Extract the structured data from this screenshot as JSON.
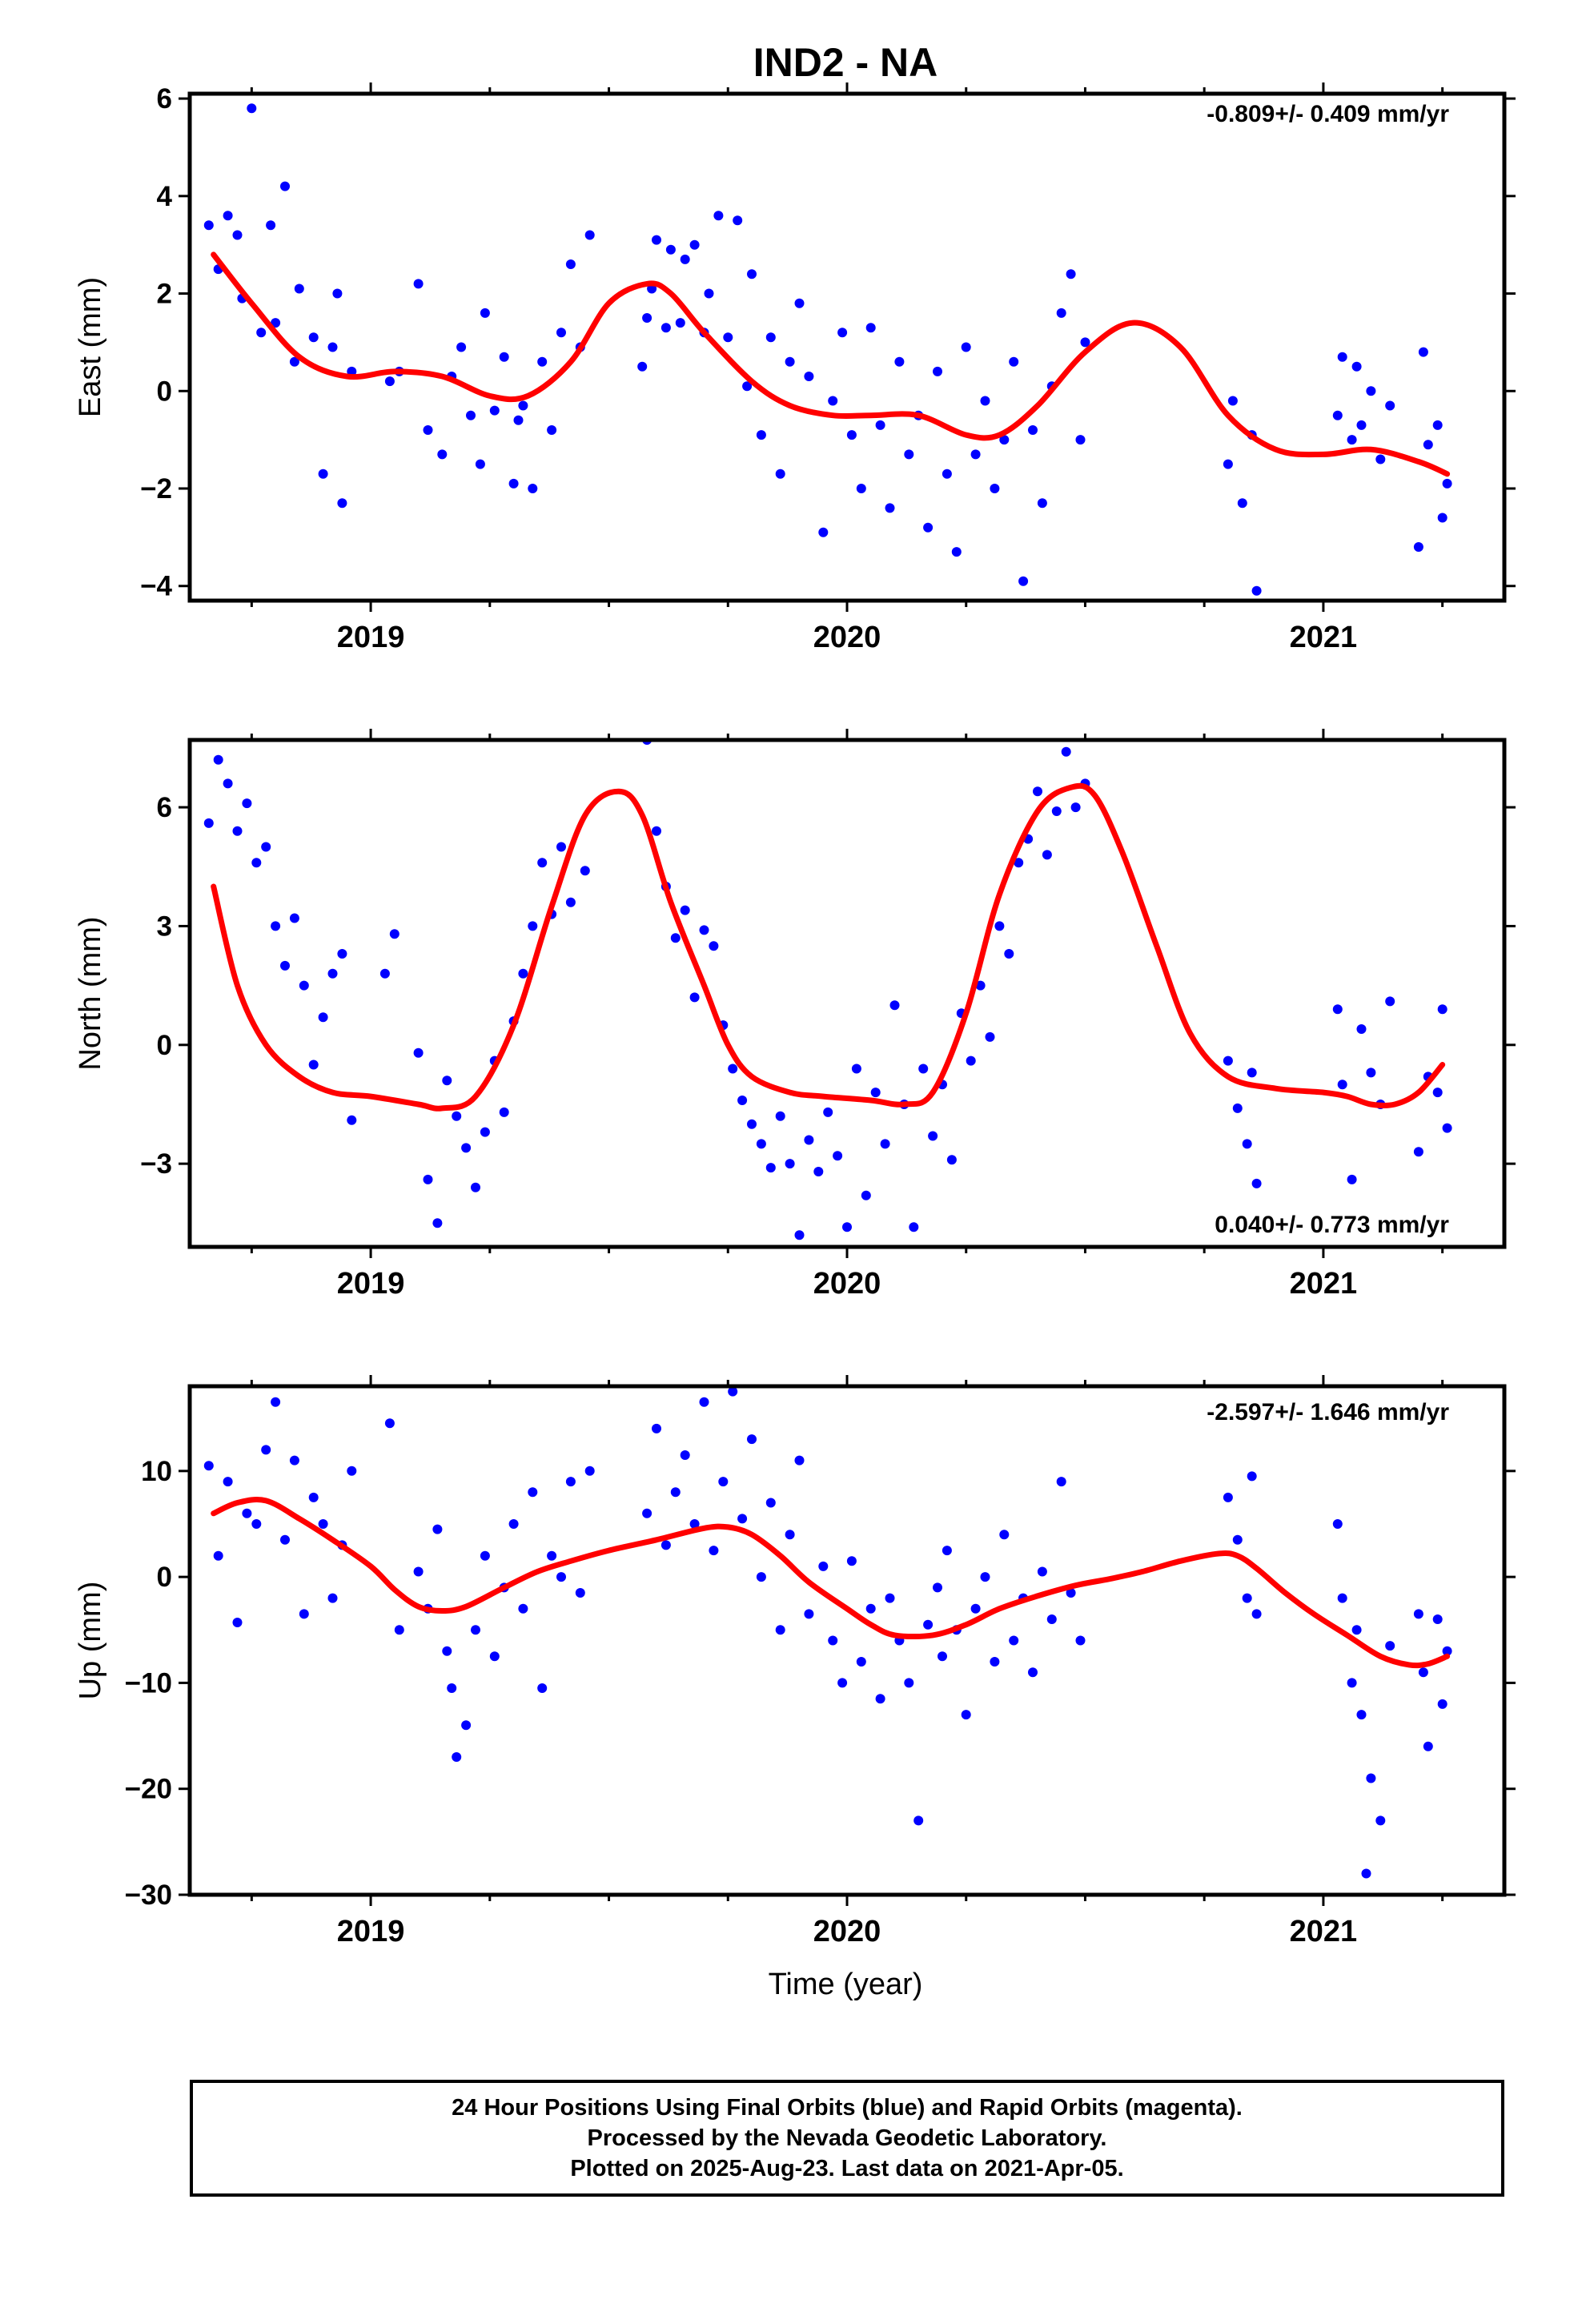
{
  "title": "IND2 - NA",
  "xlabel": "Time (year)",
  "colors": {
    "points": "#0000ff",
    "fit": "#ff0000",
    "axes": "#000000"
  },
  "chart_data": [
    {
      "type": "scatter",
      "name": "east",
      "ylabel": "East (mm)",
      "rate_text": "-0.809+/- 0.409 mm/yr",
      "xlim": [
        2018.62,
        2021.38
      ],
      "ylim": [
        -4.3,
        6.1
      ],
      "yticks": [
        -4,
        -2,
        0,
        2,
        4,
        6
      ],
      "yticklabels": [
        "−4",
        "−2",
        "0",
        "2",
        "4",
        "6"
      ],
      "xticks": [
        2019,
        2020,
        2021
      ],
      "xticklabels": [
        "2019",
        "2020",
        "2021"
      ],
      "fit": {
        "x": [
          2018.67,
          2018.75,
          2018.85,
          2018.95,
          2019.05,
          2019.15,
          2019.25,
          2019.33,
          2019.42,
          2019.5,
          2019.58,
          2019.63,
          2019.7,
          2019.8,
          2019.88,
          2019.97,
          2020.05,
          2020.15,
          2020.25,
          2020.32,
          2020.4,
          2020.5,
          2020.6,
          2020.7,
          2020.8,
          2020.9,
          2021.0,
          2021.1,
          2021.2,
          2021.26
        ],
        "y": [
          2.8,
          1.8,
          0.7,
          0.3,
          0.4,
          0.3,
          -0.1,
          -0.1,
          0.6,
          1.8,
          2.2,
          2.0,
          1.2,
          0.2,
          -0.3,
          -0.5,
          -0.5,
          -0.5,
          -0.9,
          -0.9,
          -0.3,
          0.8,
          1.4,
          0.9,
          -0.5,
          -1.2,
          -1.3,
          -1.2,
          -1.45,
          -1.7
        ]
      },
      "points": {
        "x": [
          2018.66,
          2018.68,
          2018.7,
          2018.72,
          2018.73,
          2018.75,
          2018.77,
          2018.79,
          2018.8,
          2018.82,
          2018.84,
          2018.85,
          2018.88,
          2018.9,
          2018.92,
          2018.93,
          2018.94,
          2018.96,
          2019.04,
          2019.06,
          2019.1,
          2019.12,
          2019.15,
          2019.17,
          2019.19,
          2019.21,
          2019.23,
          2019.24,
          2019.26,
          2019.28,
          2019.3,
          2019.31,
          2019.32,
          2019.34,
          2019.36,
          2019.38,
          2019.4,
          2019.42,
          2019.44,
          2019.46,
          2019.57,
          2019.58,
          2019.59,
          2019.6,
          2019.62,
          2019.63,
          2019.65,
          2019.66,
          2019.68,
          2019.7,
          2019.71,
          2019.73,
          2019.75,
          2019.77,
          2019.79,
          2019.8,
          2019.82,
          2019.84,
          2019.86,
          2019.88,
          2019.9,
          2019.92,
          2019.95,
          2019.97,
          2019.99,
          2020.01,
          2020.03,
          2020.05,
          2020.07,
          2020.09,
          2020.11,
          2020.13,
          2020.15,
          2020.17,
          2020.19,
          2020.21,
          2020.23,
          2020.25,
          2020.27,
          2020.29,
          2020.31,
          2020.33,
          2020.35,
          2020.37,
          2020.39,
          2020.41,
          2020.43,
          2020.45,
          2020.47,
          2020.49,
          2020.5,
          2020.8,
          2020.81,
          2020.83,
          2020.85,
          2020.86,
          2021.03,
          2021.04,
          2021.06,
          2021.07,
          2021.08,
          2021.1,
          2021.12,
          2021.14,
          2021.2,
          2021.21,
          2021.22,
          2021.24,
          2021.25,
          2021.26
        ],
        "y": [
          3.4,
          2.5,
          3.6,
          3.2,
          1.9,
          5.8,
          1.2,
          3.4,
          1.4,
          4.2,
          0.6,
          2.1,
          1.1,
          -1.7,
          0.9,
          2.0,
          -2.3,
          0.4,
          0.2,
          0.4,
          2.2,
          -0.8,
          -1.3,
          0.3,
          0.9,
          -0.5,
          -1.5,
          1.6,
          -0.4,
          0.7,
          -1.9,
          -0.6,
          -0.3,
          -2.0,
          0.6,
          -0.8,
          1.2,
          2.6,
          0.9,
          3.2,
          0.5,
          1.5,
          2.1,
          3.1,
          1.3,
          2.9,
          1.4,
          2.7,
          3.0,
          1.2,
          2.0,
          3.6,
          1.1,
          3.5,
          0.1,
          2.4,
          -0.9,
          1.1,
          -1.7,
          0.6,
          1.8,
          0.3,
          -2.9,
          -0.2,
          1.2,
          -0.9,
          -2.0,
          1.3,
          -0.7,
          -2.4,
          0.6,
          -1.3,
          -0.5,
          -2.8,
          0.4,
          -1.7,
          -3.3,
          0.9,
          -1.3,
          -0.2,
          -2.0,
          -1.0,
          0.6,
          -3.9,
          -0.8,
          -2.3,
          0.1,
          1.6,
          2.4,
          -1.0,
          1.0,
          -1.5,
          -0.2,
          -2.3,
          -0.9,
          -4.1,
          -0.5,
          0.7,
          -1.0,
          0.5,
          -0.7,
          0.0,
          -1.4,
          -0.3,
          -3.2,
          0.8,
          -1.1,
          -0.7,
          -2.6,
          -1.9
        ]
      }
    },
    {
      "type": "scatter",
      "name": "north",
      "ylabel": "North (mm)",
      "rate_text": "0.040+/- 0.773 mm/yr",
      "xlim": [
        2018.62,
        2021.38
      ],
      "ylim": [
        -5.1,
        7.7
      ],
      "yticks": [
        -3,
        0,
        3,
        6
      ],
      "yticklabels": [
        "−3",
        "0",
        "3",
        "6"
      ],
      "xticks": [
        2019,
        2020,
        2021
      ],
      "xticklabels": [
        "2019",
        "2020",
        "2021"
      ],
      "fit": {
        "x": [
          2018.67,
          2018.72,
          2018.78,
          2018.85,
          2018.92,
          2019.0,
          2019.1,
          2019.15,
          2019.22,
          2019.3,
          2019.38,
          2019.45,
          2019.52,
          2019.57,
          2019.63,
          2019.7,
          2019.75,
          2019.8,
          2019.88,
          2019.95,
          2020.05,
          2020.12,
          2020.18,
          2020.25,
          2020.32,
          2020.4,
          2020.47,
          2020.52,
          2020.58,
          2020.65,
          2020.72,
          2020.8,
          2020.9,
          2021.0,
          2021.05,
          2021.1,
          2021.15,
          2021.2,
          2021.25
        ],
        "y": [
          4.0,
          1.5,
          0.0,
          -0.8,
          -1.2,
          -1.3,
          -1.5,
          -1.6,
          -1.3,
          0.5,
          3.5,
          5.8,
          6.4,
          5.8,
          3.6,
          1.5,
          0.0,
          -0.8,
          -1.2,
          -1.3,
          -1.4,
          -1.5,
          -1.2,
          0.8,
          3.8,
          5.9,
          6.5,
          6.3,
          4.8,
          2.5,
          0.3,
          -0.8,
          -1.1,
          -1.2,
          -1.3,
          -1.5,
          -1.5,
          -1.2,
          -0.5
        ]
      },
      "points": {
        "x": [
          2018.66,
          2018.68,
          2018.7,
          2018.72,
          2018.74,
          2018.76,
          2018.78,
          2018.8,
          2018.82,
          2018.84,
          2018.86,
          2018.88,
          2018.9,
          2018.92,
          2018.94,
          2018.96,
          2019.03,
          2019.05,
          2019.1,
          2019.12,
          2019.14,
          2019.16,
          2019.18,
          2019.2,
          2019.22,
          2019.24,
          2019.26,
          2019.28,
          2019.3,
          2019.32,
          2019.34,
          2019.36,
          2019.38,
          2019.4,
          2019.42,
          2019.45,
          2019.58,
          2019.6,
          2019.62,
          2019.64,
          2019.66,
          2019.68,
          2019.7,
          2019.72,
          2019.74,
          2019.76,
          2019.78,
          2019.8,
          2019.82,
          2019.84,
          2019.86,
          2019.88,
          2019.9,
          2019.92,
          2019.94,
          2019.96,
          2019.98,
          2020.0,
          2020.02,
          2020.04,
          2020.06,
          2020.08,
          2020.1,
          2020.12,
          2020.14,
          2020.16,
          2020.18,
          2020.2,
          2020.22,
          2020.24,
          2020.26,
          2020.28,
          2020.3,
          2020.32,
          2020.34,
          2020.36,
          2020.38,
          2020.4,
          2020.42,
          2020.44,
          2020.46,
          2020.48,
          2020.5,
          2020.8,
          2020.82,
          2020.84,
          2020.85,
          2020.86,
          2021.03,
          2021.04,
          2021.06,
          2021.08,
          2021.1,
          2021.12,
          2021.14,
          2021.2,
          2021.22,
          2021.24,
          2021.25,
          2021.26
        ],
        "y": [
          5.6,
          7.2,
          6.6,
          5.4,
          6.1,
          4.6,
          5.0,
          3.0,
          2.0,
          3.2,
          1.5,
          -0.5,
          0.7,
          1.8,
          2.3,
          -1.9,
          1.8,
          2.8,
          -0.2,
          -3.4,
          -4.5,
          -0.9,
          -1.8,
          -2.6,
          -3.6,
          -2.2,
          -0.4,
          -1.7,
          0.6,
          1.8,
          3.0,
          4.6,
          3.3,
          5.0,
          3.6,
          4.4,
          7.7,
          5.4,
          4.0,
          2.7,
          3.4,
          1.2,
          2.9,
          2.5,
          0.5,
          -0.6,
          -1.4,
          -2.0,
          -2.5,
          -3.1,
          -1.8,
          -3.0,
          -4.8,
          -2.4,
          -3.2,
          -1.7,
          -2.8,
          -4.6,
          -0.6,
          -3.8,
          -1.2,
          -2.5,
          1.0,
          -1.5,
          -4.6,
          -0.6,
          -2.3,
          -1.0,
          -2.9,
          0.8,
          -0.4,
          1.5,
          0.2,
          3.0,
          2.3,
          4.6,
          5.2,
          6.4,
          4.8,
          5.9,
          7.4,
          6.0,
          6.6,
          -0.4,
          -1.6,
          -2.5,
          -0.7,
          -3.5,
          0.9,
          -1.0,
          -3.4,
          0.4,
          -0.7,
          -1.5,
          1.1,
          -2.7,
          -0.8,
          -1.2,
          0.9,
          -2.1
        ]
      }
    },
    {
      "type": "scatter",
      "name": "up",
      "ylabel": "Up (mm)",
      "rate_text": "-2.597+/- 1.646 mm/yr",
      "xlim": [
        2018.62,
        2021.38
      ],
      "ylim": [
        -30.0,
        18.0
      ],
      "yticks": [
        -30,
        -20,
        -10,
        0,
        10
      ],
      "yticklabels": [
        "−30",
        "−20",
        "−10",
        "0",
        "10"
      ],
      "xticks": [
        2019,
        2020,
        2021
      ],
      "xticklabels": [
        "2019",
        "2020",
        "2021"
      ],
      "fit": {
        "x": [
          2018.67,
          2018.72,
          2018.78,
          2018.85,
          2018.92,
          2019.0,
          2019.05,
          2019.1,
          2019.15,
          2019.2,
          2019.28,
          2019.35,
          2019.42,
          2019.5,
          2019.6,
          2019.7,
          2019.75,
          2019.8,
          2019.86,
          2019.92,
          2020.0,
          2020.05,
          2020.1,
          2020.18,
          2020.25,
          2020.32,
          2020.4,
          2020.48,
          2020.55,
          2020.62,
          2020.7,
          2020.78,
          2020.82,
          2020.86,
          2020.92,
          2020.98,
          2021.05,
          2021.12,
          2021.18,
          2021.22,
          2021.26
        ],
        "y": [
          6.0,
          7.0,
          7.2,
          5.5,
          3.5,
          1.0,
          -1.2,
          -2.8,
          -3.2,
          -2.8,
          -1.0,
          0.5,
          1.5,
          2.5,
          3.5,
          4.6,
          4.7,
          4.0,
          2.0,
          -0.5,
          -3.0,
          -4.5,
          -5.5,
          -5.5,
          -4.5,
          -3.0,
          -1.8,
          -0.8,
          -0.2,
          0.5,
          1.5,
          2.2,
          2.0,
          0.8,
          -1.5,
          -3.5,
          -5.5,
          -7.5,
          -8.3,
          -8.2,
          -7.5
        ]
      },
      "points": {
        "x": [
          2018.66,
          2018.68,
          2018.7,
          2018.72,
          2018.74,
          2018.76,
          2018.78,
          2018.8,
          2018.82,
          2018.84,
          2018.86,
          2018.88,
          2018.9,
          2018.92,
          2018.94,
          2018.96,
          2019.04,
          2019.06,
          2019.1,
          2019.12,
          2019.14,
          2019.16,
          2019.17,
          2019.18,
          2019.2,
          2019.22,
          2019.24,
          2019.26,
          2019.28,
          2019.3,
          2019.32,
          2019.34,
          2019.36,
          2019.38,
          2019.4,
          2019.42,
          2019.44,
          2019.46,
          2019.58,
          2019.6,
          2019.62,
          2019.64,
          2019.66,
          2019.68,
          2019.7,
          2019.72,
          2019.74,
          2019.76,
          2019.78,
          2019.8,
          2019.82,
          2019.84,
          2019.86,
          2019.88,
          2019.9,
          2019.92,
          2019.95,
          2019.97,
          2019.99,
          2020.01,
          2020.03,
          2020.05,
          2020.07,
          2020.09,
          2020.11,
          2020.13,
          2020.15,
          2020.17,
          2020.19,
          2020.2,
          2020.21,
          2020.23,
          2020.25,
          2020.27,
          2020.29,
          2020.31,
          2020.33,
          2020.35,
          2020.37,
          2020.39,
          2020.41,
          2020.43,
          2020.45,
          2020.47,
          2020.49,
          2020.8,
          2020.82,
          2020.84,
          2020.85,
          2020.86,
          2021.03,
          2021.04,
          2021.06,
          2021.07,
          2021.08,
          2021.09,
          2021.1,
          2021.12,
          2021.14,
          2021.2,
          2021.21,
          2021.22,
          2021.24,
          2021.25,
          2021.26
        ],
        "y": [
          10.5,
          2.0,
          9.0,
          -4.3,
          6.0,
          5.0,
          12.0,
          16.5,
          3.5,
          11.0,
          -3.5,
          7.5,
          5.0,
          -2.0,
          3.0,
          10.0,
          14.5,
          -5.0,
          0.5,
          -3.0,
          4.5,
          -7.0,
          -10.5,
          -17.0,
          -14.0,
          -5.0,
          2.0,
          -7.5,
          -1.0,
          5.0,
          -3.0,
          8.0,
          -10.5,
          2.0,
          0.0,
          9.0,
          -1.5,
          10.0,
          6.0,
          14.0,
          3.0,
          8.0,
          11.5,
          5.0,
          16.5,
          2.5,
          9.0,
          17.5,
          5.5,
          13.0,
          0.0,
          7.0,
          -5.0,
          4.0,
          11.0,
          -3.5,
          1.0,
          -6.0,
          -10.0,
          1.5,
          -8.0,
          -3.0,
          -11.5,
          -2.0,
          -6.0,
          -10.0,
          -23.0,
          -4.5,
          -1.0,
          -7.5,
          2.5,
          -5.0,
          -13.0,
          -3.0,
          0.0,
          -8.0,
          4.0,
          -6.0,
          -2.0,
          -9.0,
          0.5,
          -4.0,
          9.0,
          -1.5,
          -6.0,
          7.5,
          3.5,
          -2.0,
          9.5,
          -3.5,
          5.0,
          -2.0,
          -10.0,
          -5.0,
          -13.0,
          -28.0,
          -19.0,
          -23.0,
          -6.5,
          -3.5,
          -9.0,
          -16.0,
          -4.0,
          -12.0,
          -7.0
        ]
      }
    }
  ],
  "footer": {
    "line1": "24 Hour Positions Using Final Orbits (blue) and Rapid Orbits (magenta).",
    "line2": "Processed by the Nevada Geodetic Laboratory.",
    "line3": "Plotted on 2025-Aug-23. Last data on 2021-Apr-05."
  }
}
